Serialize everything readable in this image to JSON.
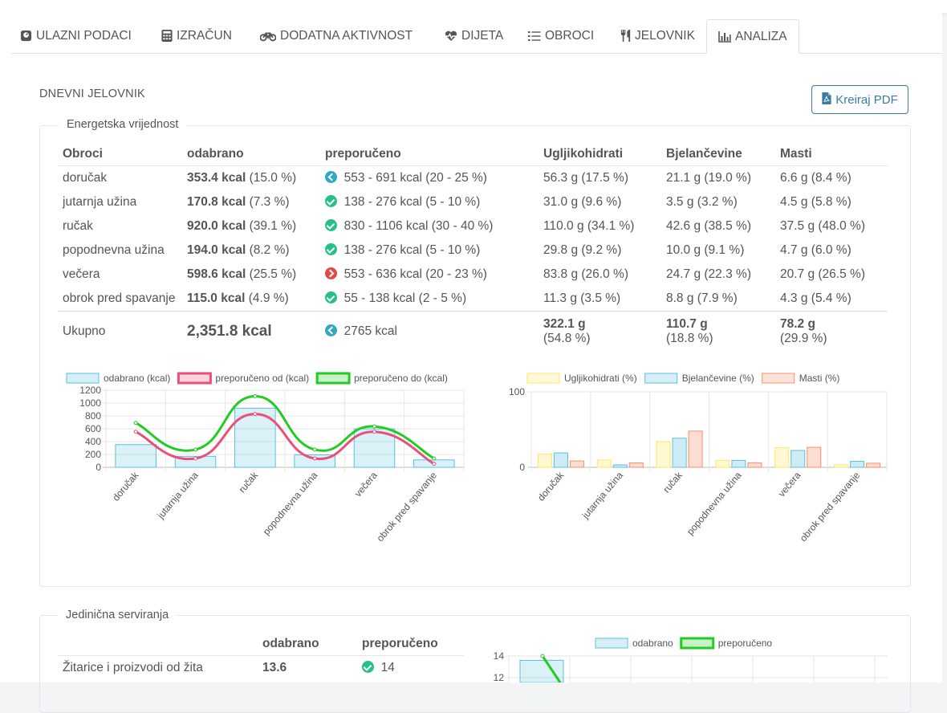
{
  "tabs": [
    {
      "label": "ULAZNI PODACI",
      "icon": "scale-icon"
    },
    {
      "label": "IZRAČUN",
      "icon": "calculator-icon"
    },
    {
      "label": "DODATNA AKTIVNOST",
      "icon": "bicycle-icon"
    },
    {
      "label": "DIJETA",
      "icon": "heartbeat-icon"
    },
    {
      "label": "OBROCI",
      "icon": "list-icon"
    },
    {
      "label": "JELOVNIK",
      "icon": "utensils-icon"
    },
    {
      "label": "ANALIZA",
      "icon": "bar-chart-icon",
      "active": true
    }
  ],
  "page_title": "DNEVNI JELOVNIK",
  "pdf_button": "Kreiraj PDF",
  "energy": {
    "legend": "Energetska vrijednost",
    "headers": [
      "Obroci",
      "odabrano",
      "preporučeno",
      "Ugljikohidrati",
      "Bjelančevine",
      "Masti"
    ],
    "rows": [
      {
        "meal": "doručak",
        "kcal": "353.4 kcal",
        "pct": "(15.0 %)",
        "status": "low",
        "rec": "553 - 691 kcal (20 - 25 %)",
        "carb": "56.3 g (17.5 %)",
        "prot": "21.1 g (19.0 %)",
        "fat": "6.6 g (8.4 %)"
      },
      {
        "meal": "jutarnja užina",
        "kcal": "170.8 kcal",
        "pct": "(7.3 %)",
        "status": "ok",
        "rec": "138 - 276 kcal (5 - 10 %)",
        "carb": "31.0 g (9.6 %)",
        "prot": "3.5 g (3.2 %)",
        "fat": "4.5 g (5.8 %)"
      },
      {
        "meal": "ručak",
        "kcal": "920.0 kcal",
        "pct": "(39.1 %)",
        "status": "ok",
        "rec": "830 - 1106 kcal (30 - 40 %)",
        "carb": "110.0 g (34.1 %)",
        "prot": "42.6 g (38.5 %)",
        "fat": "37.5 g (48.0 %)"
      },
      {
        "meal": "popodnevna užina",
        "kcal": "194.0 kcal",
        "pct": "(8.2 %)",
        "status": "ok",
        "rec": "138 - 276 kcal (5 - 10 %)",
        "carb": "29.8 g (9.2 %)",
        "prot": "10.0 g (9.1 %)",
        "fat": "4.7 g (6.0 %)"
      },
      {
        "meal": "večera",
        "kcal": "598.6 kcal",
        "pct": "(25.5 %)",
        "status": "high",
        "rec": "553 - 636 kcal (20 - 23 %)",
        "carb": "83.8 g (26.0 %)",
        "prot": "24.7 g (22.3 %)",
        "fat": "20.7 g (26.5 %)"
      },
      {
        "meal": "obrok pred spavanje",
        "kcal": "115.0 kcal",
        "pct": "(4.9 %)",
        "status": "ok",
        "rec": "55 - 138 kcal (2 - 5 %)",
        "carb": "11.3 g (3.5 %)",
        "prot": "8.8 g (7.9 %)",
        "fat": "4.3 g (5.4 %)"
      }
    ],
    "total": {
      "label": "Ukupno",
      "kcal": "2,351.8 kcal",
      "status": "low",
      "rec": "2765 kcal",
      "carb": "322.1 g",
      "carb_pct": "(54.8 %)",
      "prot": "110.7 g",
      "prot_pct": "(18.8 %)",
      "fat": "78.2 g",
      "fat_pct": "(29.9 %)"
    }
  },
  "units": {
    "legend": "Jedinična serviranja",
    "headers": [
      "",
      "odabrano",
      "preporučeno"
    ],
    "rows": [
      {
        "name": "Žitarice i proizvodi od žita",
        "selected": "13.6",
        "status": "ok",
        "rec": "14"
      }
    ]
  },
  "chart_data": [
    {
      "type": "bar",
      "categories": [
        "doručak",
        "jutarnja užina",
        "ručak",
        "popodnevna užina",
        "večera",
        "obrok pred spavanje"
      ],
      "series": [
        {
          "name": "odabrano (kcal)",
          "type": "bar",
          "values": [
            353.4,
            170.8,
            920.0,
            194.0,
            598.6,
            115.0
          ],
          "color": "#5bc0de"
        },
        {
          "name": "preporučeno od (kcal)",
          "type": "line",
          "values": [
            553,
            138,
            830,
            138,
            553,
            55
          ],
          "color": "#e8507a"
        },
        {
          "name": "preporučeno do (kcal)",
          "type": "line",
          "values": [
            691,
            276,
            1106,
            276,
            636,
            138
          ],
          "color": "#22cc22"
        }
      ],
      "yticks": [
        0,
        200,
        400,
        600,
        800,
        1000,
        1200
      ],
      "ylim": [
        0,
        1200
      ],
      "grid": true,
      "legend": "top"
    },
    {
      "type": "bar",
      "categories": [
        "doručak",
        "jutarnja užina",
        "ručak",
        "popodnevna užina",
        "večera",
        "obrok pred spavanje"
      ],
      "series": [
        {
          "name": "Ugljikohidrati (%)",
          "values": [
            17.5,
            9.6,
            34.1,
            9.2,
            26.0,
            3.5
          ],
          "color": "#ffe766"
        },
        {
          "name": "Bjelančevine (%)",
          "values": [
            19.0,
            3.2,
            38.5,
            9.1,
            22.3,
            7.9
          ],
          "color": "#5bc0de"
        },
        {
          "name": "Masti (%)",
          "values": [
            8.4,
            5.8,
            48.0,
            6.0,
            26.5,
            5.4
          ],
          "color": "#f5906a"
        }
      ],
      "yticks": [
        0,
        100
      ],
      "ylim": [
        0,
        100
      ],
      "grid": true,
      "legend": "top"
    },
    {
      "type": "bar",
      "categories": [
        "Žitarice i proizvodi od žita"
      ],
      "series": [
        {
          "name": "odabrano",
          "type": "bar",
          "values": [
            13.6
          ],
          "color": "#5bc0de"
        },
        {
          "name": "preporučeno",
          "type": "line",
          "values": [
            14
          ],
          "color": "#22cc22"
        }
      ],
      "yticks": [
        12,
        14
      ],
      "grid": true,
      "legend": "top"
    }
  ]
}
